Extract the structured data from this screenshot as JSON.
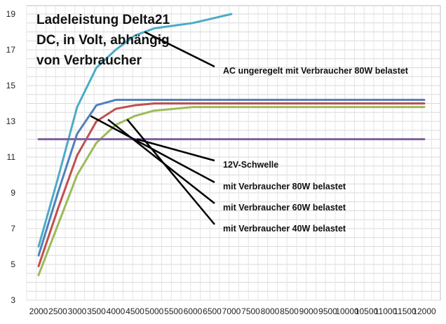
{
  "chart_data": {
    "type": "line",
    "title_lines": [
      "Ladeleistung Delta21",
      "DC, in Volt, abhängig",
      "von Verbraucher"
    ],
    "xlabel": "",
    "ylabel": "",
    "categories": [
      "2000",
      "2500",
      "3000",
      "3500",
      "4000",
      "4500",
      "5000",
      "5500",
      "6000",
      "6500",
      "7000",
      "7500",
      "8000",
      "8500",
      "9000",
      "9500",
      "10000",
      "10500",
      "11000",
      "11500",
      "12000"
    ],
    "y_ticks": [
      3,
      5,
      7,
      9,
      11,
      13,
      15,
      17,
      19
    ],
    "ylim": [
      3,
      19.6
    ],
    "grid": true,
    "series": [
      {
        "key": "ac",
        "color": "#4bacc6",
        "values": [
          6.0,
          9.8,
          13.8,
          16.0,
          17.0,
          17.8,
          18.2,
          18.35,
          18.5,
          18.75,
          19.0,
          null,
          null,
          null,
          null,
          null,
          null,
          null,
          null,
          null,
          null
        ]
      },
      {
        "key": "w80",
        "color": "#4f81bd",
        "values": [
          5.5,
          9.0,
          12.3,
          13.9,
          14.2,
          14.2,
          14.2,
          14.2,
          14.2,
          14.2,
          14.2,
          14.2,
          14.2,
          14.2,
          14.2,
          14.2,
          14.2,
          14.2,
          14.2,
          14.2,
          14.2
        ]
      },
      {
        "key": "w60",
        "color": "#c0504d",
        "values": [
          4.9,
          8.1,
          11.1,
          13.0,
          13.7,
          13.9,
          14.0,
          14.0,
          14.0,
          14.0,
          14.0,
          14.0,
          14.0,
          14.0,
          14.0,
          14.0,
          14.0,
          14.0,
          14.0,
          14.0,
          14.0
        ]
      },
      {
        "key": "w40",
        "color": "#9bbb59",
        "values": [
          4.4,
          7.2,
          10.0,
          11.8,
          12.8,
          13.3,
          13.6,
          13.7,
          13.8,
          13.8,
          13.8,
          13.8,
          13.8,
          13.8,
          13.8,
          13.8,
          13.8,
          13.8,
          13.8,
          13.8,
          13.8
        ]
      },
      {
        "key": "threshold",
        "color": "#8064a2",
        "values": [
          12,
          12,
          12,
          12,
          12,
          12,
          12,
          12,
          12,
          12,
          12,
          12,
          12,
          12,
          12,
          12,
          12,
          12,
          12,
          12,
          12
        ]
      }
    ],
    "annotations": [
      {
        "text": "AC ungeregelt mit Verbraucher 80W belastet",
        "point_x": 4750,
        "point_y": 18.0,
        "series": "ac"
      },
      {
        "text": "12V-Schwelle",
        "point_x": 4550,
        "point_y": 12.0,
        "series": "threshold"
      },
      {
        "text": "mit Verbraucher 80W belastet",
        "point_x": 3350,
        "point_y": 13.3,
        "series": "w80"
      },
      {
        "text": "mit Verbraucher 60W belastet",
        "point_x": 3800,
        "point_y": 13.1,
        "series": "w60"
      },
      {
        "text": "mit Verbraucher 40W belastet",
        "point_x": 4300,
        "point_y": 13.1,
        "series": "w40"
      }
    ]
  }
}
